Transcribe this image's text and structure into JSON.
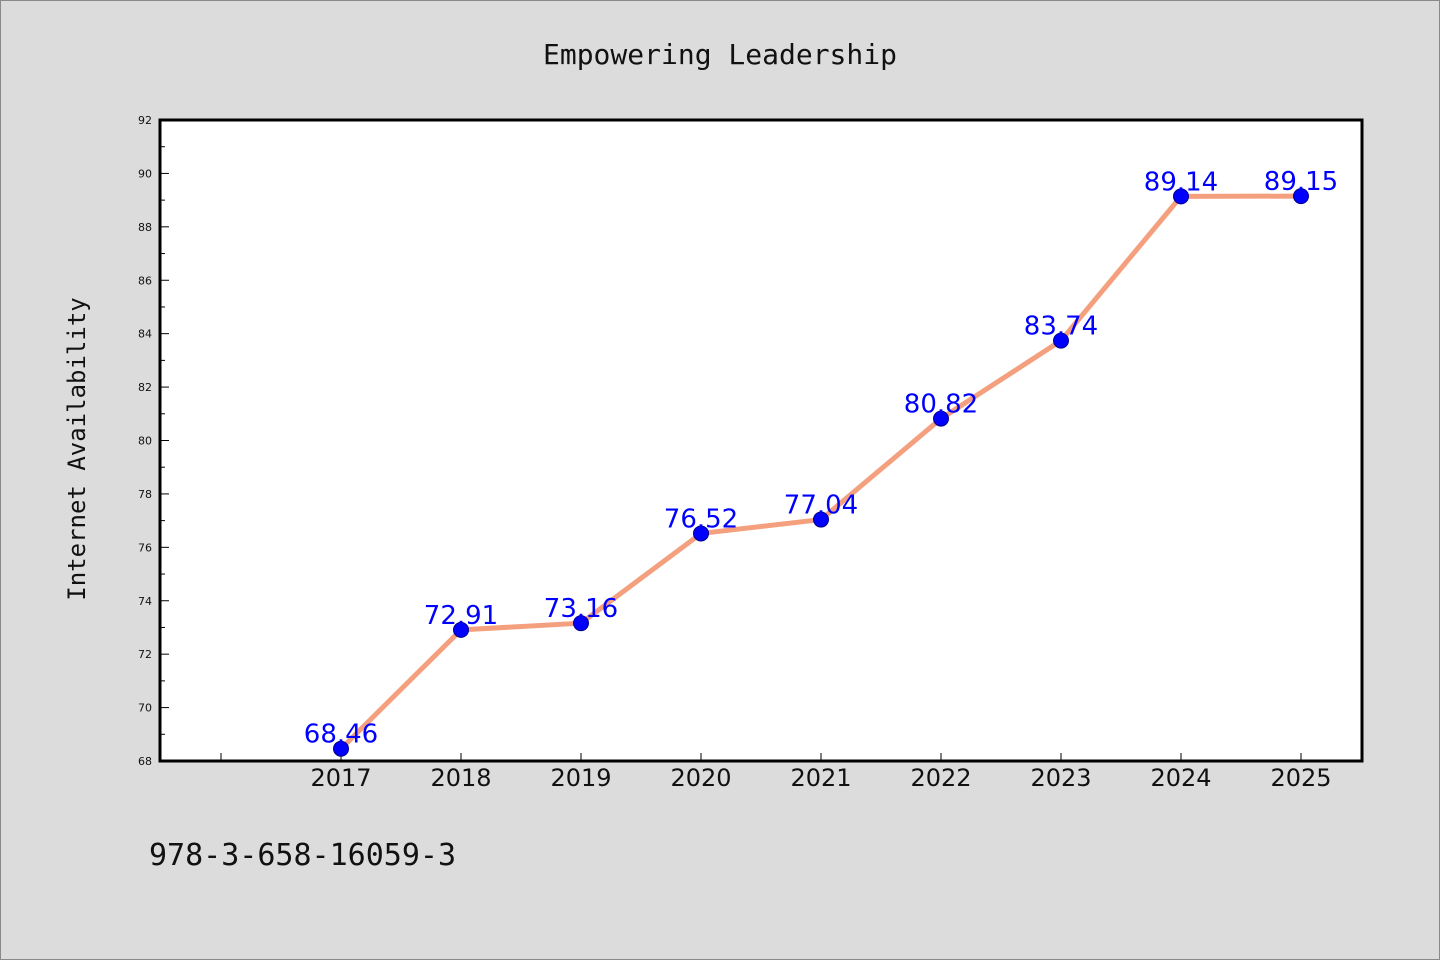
{
  "chart_data": {
    "type": "line",
    "title": "Empowering Leadership",
    "xlabel": "",
    "ylabel": "Internet Availability",
    "categories": [
      "2017",
      "2018",
      "2019",
      "2020",
      "2021",
      "2022",
      "2023",
      "2024",
      "2025"
    ],
    "series": [
      {
        "values": [
          68.46,
          72.91,
          73.16,
          76.52,
          77.04,
          80.82,
          83.74,
          89.14,
          89.15
        ]
      }
    ],
    "data_labels": [
      "68.46",
      "72.91",
      "73.16",
      "76.52",
      "77.04",
      "80.82",
      "83.74",
      "89.14",
      "89.15"
    ],
    "ylim": [
      68,
      92
    ],
    "yticks": [
      "68",
      "70",
      "72",
      "74",
      "76",
      "78",
      "80",
      "82",
      "84",
      "86",
      "88",
      "90",
      "92"
    ],
    "grid": false,
    "line_color": "#f4a07e",
    "marker_color": "#0000ff",
    "label_color": "#0000ff"
  },
  "footer": {
    "text": "978-3-658-16059-3"
  }
}
